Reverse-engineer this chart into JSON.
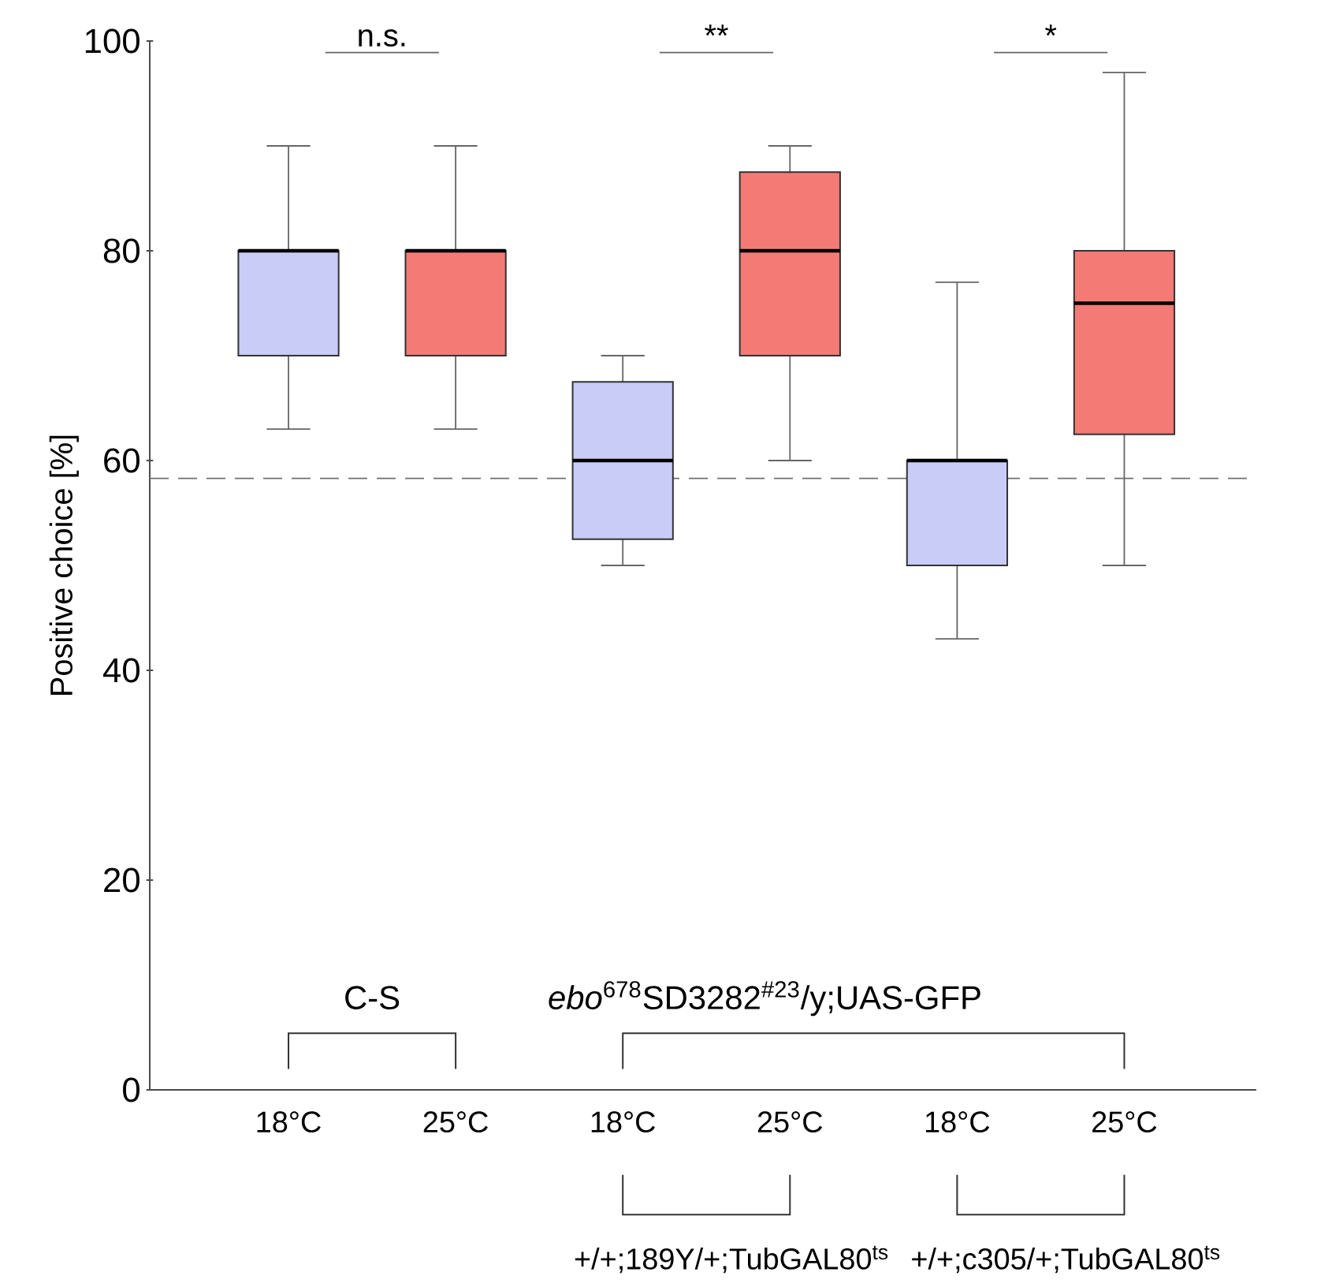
{
  "chart_data": {
    "type": "box",
    "ylabel": "Positive choice [%]",
    "categories": [
      "18°C",
      "25°C",
      "18°C",
      "25°C",
      "18°C",
      "25°C"
    ],
    "colors": [
      "#c8ccf6",
      "#f47a76",
      "#c8ccf6",
      "#f47a76",
      "#c8ccf6",
      "#f47a76"
    ],
    "boxes": [
      {
        "low": 63,
        "q1": 70,
        "median": 80,
        "q3": 80,
        "high": 90
      },
      {
        "low": 63,
        "q1": 70,
        "median": 80,
        "q3": 80,
        "high": 90
      },
      {
        "low": 50,
        "q1": 52.5,
        "median": 60,
        "q3": 67.5,
        "high": 70
      },
      {
        "low": 60,
        "q1": 70,
        "median": 80,
        "q3": 87.5,
        "high": 90
      },
      {
        "low": 43,
        "q1": 50,
        "median": 60,
        "q3": 60,
        "high": 77
      },
      {
        "low": 50,
        "q1": 62.5,
        "median": 75,
        "q3": 80,
        "high": 97
      }
    ],
    "ylim": [
      0,
      100
    ],
    "yticks": [
      0,
      20,
      40,
      60,
      80,
      100
    ],
    "ref_lines": [
      {
        "axis": "y",
        "value": 58.3,
        "line_style": "dashed",
        "color": "#707070"
      }
    ],
    "annotations": [
      "n.s.",
      "**",
      "*",
      "C-S",
      "*ebo*$^{678}$SD3282$^{#23}$/y;UAS-GFP",
      "+/+;189Y/+;TubGAL80$^{ts}$",
      "+/+;c305/+;TubGAL80$^{ts}$"
    ]
  }
}
